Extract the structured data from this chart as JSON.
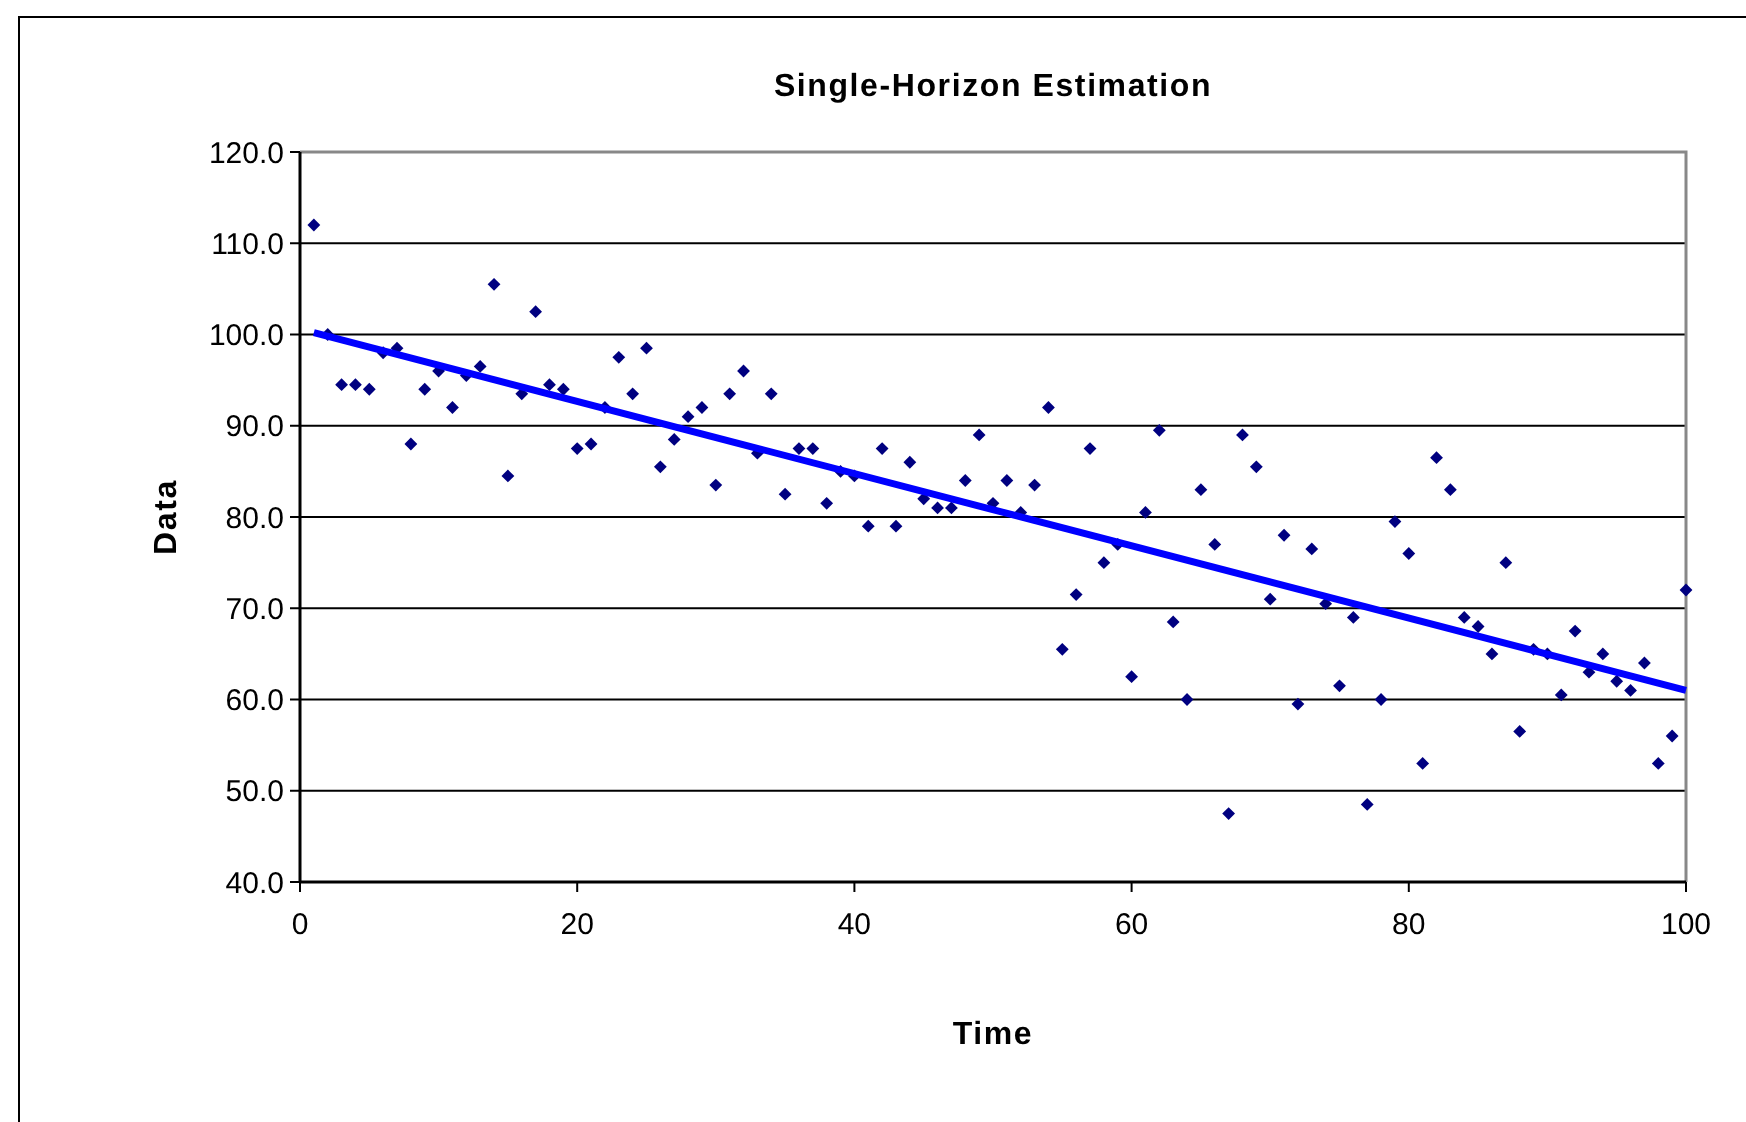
{
  "chart_data": {
    "type": "scatter",
    "title": "Single-Horizon Estimation",
    "xlabel": "Time",
    "ylabel": "Data",
    "xlim": [
      0,
      100
    ],
    "xticks": [
      0,
      20,
      40,
      60,
      80,
      100
    ],
    "ylim": [
      40,
      120
    ],
    "yticks": [
      {
        "value": 40,
        "label": "40.0"
      },
      {
        "value": 50,
        "label": "50.0"
      },
      {
        "value": 60,
        "label": "60.0"
      },
      {
        "value": 70,
        "label": "70.0"
      },
      {
        "value": 80,
        "label": "80.0"
      },
      {
        "value": 90,
        "label": "90.0"
      },
      {
        "value": 100,
        "label": "100.0"
      },
      {
        "value": 110,
        "label": "110.0"
      },
      {
        "value": 120,
        "label": "120.0"
      }
    ],
    "grid": "y",
    "series": [
      {
        "color": "#000080",
        "marker": "diamond",
        "x": [
          1,
          2,
          3,
          4,
          5,
          6,
          7,
          8,
          9,
          10,
          11,
          12,
          13,
          14,
          15,
          16,
          17,
          18,
          19,
          20,
          21,
          22,
          23,
          24,
          25,
          26,
          27,
          28,
          29,
          30,
          31,
          32,
          33,
          34,
          35,
          36,
          37,
          38,
          39,
          40,
          41,
          42,
          43,
          44,
          45,
          46,
          47,
          48,
          49,
          50,
          51,
          52,
          53,
          54,
          55,
          56,
          57,
          58,
          59,
          60,
          61,
          62,
          63,
          64,
          65,
          66,
          67,
          68,
          69,
          70,
          71,
          72,
          73,
          74,
          75,
          76,
          77,
          78,
          79,
          80,
          81,
          82,
          83,
          84,
          85,
          86,
          87,
          88,
          89,
          90,
          91,
          92,
          93,
          94,
          95,
          96,
          97,
          98,
          99,
          100
        ],
        "values": [
          112.0,
          100.0,
          94.5,
          94.5,
          94.0,
          98.0,
          98.5,
          88.0,
          94.0,
          96.0,
          92.0,
          95.5,
          96.5,
          105.5,
          84.5,
          93.5,
          102.5,
          94.5,
          94.0,
          87.5,
          88.0,
          92.0,
          97.5,
          93.5,
          98.5,
          85.5,
          88.5,
          91.0,
          92.0,
          83.5,
          93.5,
          96.0,
          87.0,
          93.5,
          82.5,
          87.5,
          87.5,
          81.5,
          85.0,
          84.5,
          79.0,
          87.5,
          79.0,
          86.0,
          82.0,
          81.0,
          81.0,
          84.0,
          89.0,
          81.5,
          84.0,
          80.5,
          83.5,
          92.0,
          65.5,
          71.5,
          87.5,
          75.0,
          77.0,
          62.5,
          80.5,
          89.5,
          68.5,
          60.0,
          83.0,
          77.0,
          47.5,
          89.0,
          85.5,
          71.0,
          78.0,
          59.5,
          76.5,
          70.5,
          61.5,
          69.0,
          48.5,
          60.0,
          79.5,
          76.0,
          53.0,
          86.5,
          83.0,
          69.0,
          68.0,
          65.0,
          75.0,
          56.5,
          65.5,
          65.0,
          60.5,
          67.5,
          63.0,
          65.0,
          62.0,
          61.0,
          64.0,
          53.0,
          56.0,
          72.0
        ]
      },
      {
        "type": "line",
        "color": "#0000ff",
        "marker": "none",
        "line_style": "solid",
        "x": [
          1,
          100
        ],
        "values": [
          100.2,
          61.0
        ]
      }
    ]
  }
}
